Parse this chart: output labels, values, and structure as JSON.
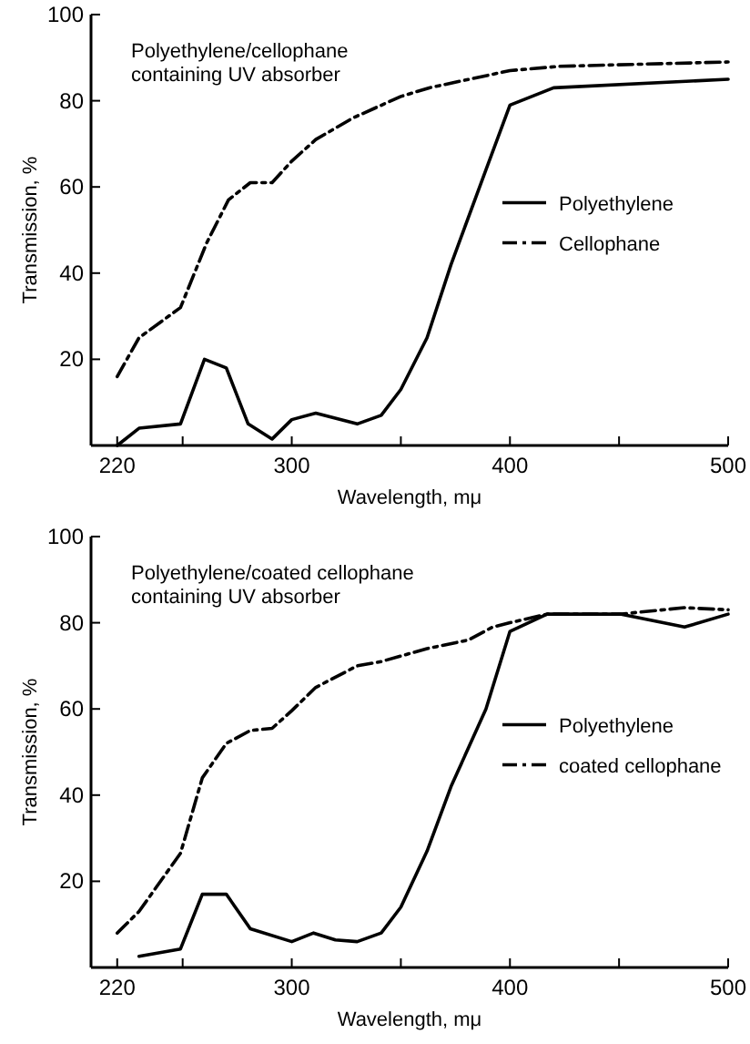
{
  "chart_data": [
    {
      "type": "line",
      "title": "Polyethylene/cellophane containing UV absorber",
      "xlabel": "Wavelength, mμ",
      "ylabel": "Transmission, %",
      "xlim": [
        208,
        500
      ],
      "ylim": [
        0,
        100
      ],
      "xticks": [
        220,
        {
          "value": 250,
          "label": null
        },
        300,
        {
          "value": 350,
          "label": null
        },
        400,
        {
          "value": 450,
          "label": null
        },
        500
      ],
      "yticks": [
        {
          "value": 0,
          "label": null
        },
        20,
        40,
        60,
        80,
        100
      ],
      "legend": "right",
      "grid": false,
      "marker": "none",
      "series": [
        {
          "name": "Polyethylene",
          "color": "#000000",
          "line_style": "solid",
          "x": [
            220,
            230,
            249,
            260,
            270,
            280,
            291,
            300,
            311,
            330,
            341,
            350,
            362,
            373,
            389,
            400,
            420,
            500
          ],
          "values": [
            0,
            4,
            5,
            20,
            18,
            5,
            1.5,
            6,
            7.5,
            5,
            7,
            13,
            25,
            42,
            64,
            79,
            83,
            85
          ]
        },
        {
          "name": "Cellophane",
          "color": "#000000",
          "line_style": "dashed",
          "x": [
            220,
            230,
            249,
            261,
            271,
            281,
            291,
            300,
            311,
            328,
            350,
            363,
            400,
            423,
            500
          ],
          "values": [
            16,
            25,
            32,
            47,
            57,
            61,
            61,
            66,
            71,
            76,
            81,
            83,
            87,
            88,
            89
          ]
        }
      ]
    },
    {
      "type": "line",
      "title": "Polyethylene/coated cellophane containing UV absorber",
      "xlabel": "Wavelength, mμ",
      "ylabel": "Transmission, %",
      "xlim": [
        208,
        500
      ],
      "ylim": [
        0,
        100
      ],
      "xticks": [
        220,
        {
          "value": 250,
          "label": null
        },
        300,
        {
          "value": 350,
          "label": null
        },
        400,
        {
          "value": 450,
          "label": null
        },
        500
      ],
      "yticks": [
        {
          "value": 0,
          "label": null
        },
        20,
        40,
        60,
        80,
        100
      ],
      "legend": "right",
      "grid": false,
      "marker": "none",
      "series": [
        {
          "name": "Polyethylene",
          "color": "#000000",
          "line_style": "solid",
          "x": [
            230,
            249,
            259,
            270,
            281,
            300,
            310,
            320,
            330,
            341,
            350,
            362,
            373,
            389,
            400,
            417,
            451,
            480,
            500
          ],
          "values": [
            2.6,
            4.3,
            17,
            17,
            9,
            6,
            8,
            6.4,
            6,
            8,
            14,
            27,
            42,
            60,
            78,
            82,
            82,
            79,
            82
          ]
        },
        {
          "name": "coated cellophane",
          "color": "#000000",
          "line_style": "dashed",
          "x": [
            220,
            230,
            249,
            259,
            270,
            281,
            291,
            300,
            311,
            330,
            341,
            362,
            381,
            392,
            400,
            417,
            451,
            460,
            480,
            500
          ],
          "values": [
            8,
            13,
            26.5,
            44,
            52,
            55,
            55.5,
            59.6,
            65,
            70,
            71,
            74,
            76,
            79,
            80,
            82,
            82,
            82.5,
            83.5,
            83
          ]
        }
      ]
    }
  ]
}
